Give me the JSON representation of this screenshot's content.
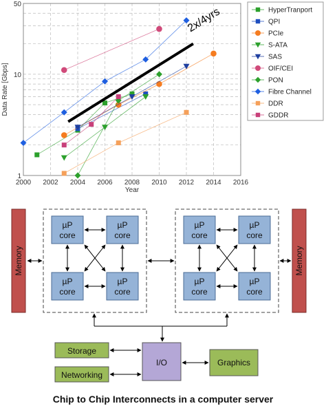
{
  "chart_data": {
    "type": "line",
    "xlabel": "Year",
    "ylabel": "Data Rate [Gbps]",
    "xlim": [
      2000,
      2016
    ],
    "ylim": [
      1,
      50
    ],
    "yscale": "log",
    "x_ticks": [
      "2000",
      "2002",
      "2004",
      "2006",
      "2008",
      "2010",
      "2012",
      "2014",
      "2016"
    ],
    "y_ticks": [
      "1",
      "10",
      "50"
    ],
    "grid": true,
    "legend_position": "right",
    "trend_annotation": "2x/4yrs",
    "trend_line": [
      [
        2003.3,
        3.4
      ],
      [
        2012.5,
        20
      ]
    ],
    "series": [
      {
        "name": "HyperTranport",
        "color": "#2ca02c",
        "marker": "square",
        "points": [
          [
            2001,
            1.6
          ],
          [
            2004,
            2.8
          ],
          [
            2006,
            5.2
          ],
          [
            2008,
            6.4
          ]
        ]
      },
      {
        "name": "QPI",
        "color": "#1f4fbf",
        "marker": "square",
        "points": [
          [
            2004,
            2.9
          ],
          [
            2009,
            6.4
          ]
        ]
      },
      {
        "name": "PCIe",
        "color": "#f57c20",
        "marker": "circle",
        "points": [
          [
            2003,
            2.5
          ],
          [
            2007,
            5.0
          ],
          [
            2010,
            8.0
          ],
          [
            2014,
            16
          ]
        ]
      },
      {
        "name": "S-ATA",
        "color": "#2ca02c",
        "marker": "triangle-down",
        "points": [
          [
            2003,
            1.5
          ],
          [
            2006,
            3.0
          ],
          [
            2009,
            6.0
          ]
        ]
      },
      {
        "name": "SAS",
        "color": "#1f3f9f",
        "marker": "triangle-down",
        "points": [
          [
            2004,
            3.0
          ],
          [
            2008,
            6.0
          ],
          [
            2012,
            12
          ]
        ]
      },
      {
        "name": "OIF/CEI",
        "color": "#d04a7a",
        "marker": "circle",
        "points": [
          [
            2003,
            11
          ],
          [
            2010,
            28
          ]
        ]
      },
      {
        "name": "PON",
        "color": "#2ca02c",
        "marker": "diamond",
        "points": [
          [
            2004,
            1.0
          ],
          [
            2007,
            5.5
          ],
          [
            2010,
            10
          ]
        ]
      },
      {
        "name": "Fibre Channel",
        "color": "#1f5fe0",
        "marker": "diamond",
        "points": [
          [
            2000,
            2.1
          ],
          [
            2003,
            4.2
          ],
          [
            2006,
            8.5
          ],
          [
            2009,
            14
          ],
          [
            2012,
            34
          ]
        ]
      },
      {
        "name": "DDR",
        "color": "#f5a05a",
        "marker": "square",
        "points": [
          [
            2003,
            1.05
          ],
          [
            2007,
            2.1
          ],
          [
            2012,
            4.2
          ]
        ]
      },
      {
        "name": "GDDR",
        "color": "#c8407a",
        "marker": "square",
        "points": [
          [
            2003,
            2.0
          ],
          [
            2005,
            3.2
          ],
          [
            2007,
            6.0
          ]
        ]
      }
    ]
  },
  "diagram": {
    "memory_left": "Memory",
    "memory_right": "Memory",
    "cores": [
      "µP\ncore",
      "µP\ncore",
      "µP\ncore",
      "µP\ncore"
    ],
    "core_line1": "µP",
    "core_line2": "core",
    "io": "I/O",
    "storage": "Storage",
    "networking": "Networking",
    "graphics": "Graphics",
    "colors": {
      "memory": "#c0504d",
      "core": "#95b3d7",
      "io": "#b4a7d6",
      "peripheral": "#9bbb59"
    }
  },
  "caption": "Chip to Chip Interconnects in a computer server"
}
